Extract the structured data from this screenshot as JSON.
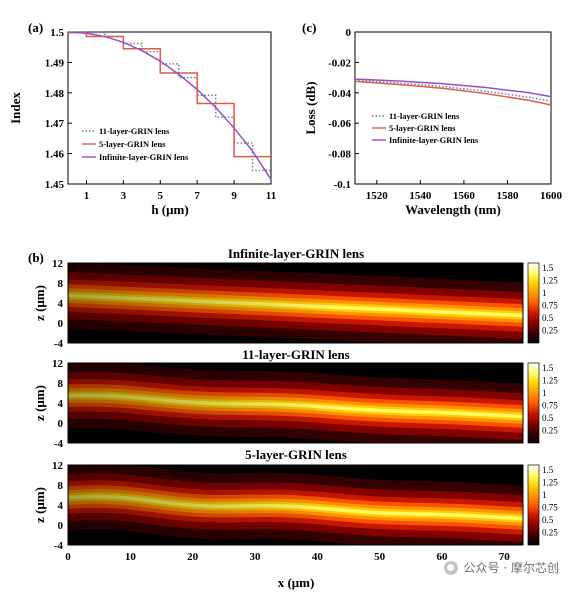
{
  "panel_labels": {
    "a": "(a)",
    "b": "(b)",
    "c": "(c)"
  },
  "watermark": {
    "text": "公众号 · 摩尔芯创",
    "icon": "wechat-icon"
  },
  "colors": {
    "eleven": "#5b8a93",
    "five": "#e25b45",
    "infinite": "#9b4dca",
    "heat": [
      "#000000",
      "#3a0000",
      "#8a0000",
      "#cf1800",
      "#ff5a00",
      "#ff9a00",
      "#ffd400",
      "#ffff70",
      "#ffffff"
    ]
  },
  "chart_data": [
    {
      "id": "a",
      "type": "line",
      "xlabel": "h (μm)",
      "ylabel": "Index",
      "xlim": [
        0,
        11
      ],
      "ylim": [
        1.45,
        1.5
      ],
      "xticks": [
        1,
        3,
        5,
        7,
        9,
        11
      ],
      "yticks": [
        1.45,
        1.46,
        1.47,
        1.48,
        1.49,
        1.5
      ],
      "legend_position": "bottom-left",
      "series": [
        {
          "name": "11-layer-GRIN lens",
          "style": "dotted",
          "step": true,
          "x": [
            0,
            1,
            2,
            3,
            4,
            5,
            6,
            7,
            8,
            9,
            10,
            11
          ],
          "y": [
            1.5,
            1.4998,
            1.4985,
            1.4962,
            1.4935,
            1.4895,
            1.485,
            1.4792,
            1.472,
            1.4635,
            1.4545,
            1.4545
          ]
        },
        {
          "name": "5-layer-GRIN lens",
          "style": "solid",
          "step": true,
          "x": [
            0,
            1,
            3,
            5,
            7,
            9,
            11
          ],
          "y": [
            1.4998,
            1.4985,
            1.4945,
            1.4865,
            1.4765,
            1.459,
            1.459
          ]
        },
        {
          "name": "Infinite-layer-GRIN lens",
          "style": "solid",
          "step": false,
          "x": [
            0,
            1,
            2,
            3,
            4,
            5,
            6,
            7,
            8,
            9,
            10,
            11
          ],
          "y": [
            1.5,
            1.4996,
            1.4985,
            1.4966,
            1.4939,
            1.4904,
            1.4861,
            1.4811,
            1.4752,
            1.4684,
            1.4608,
            1.4515
          ]
        }
      ]
    },
    {
      "id": "c",
      "type": "line",
      "xlabel": "Wavelength (nm)",
      "ylabel": "Loss (dB)",
      "xlim": [
        1510,
        1600
      ],
      "ylim": [
        -0.1,
        0
      ],
      "xticks": [
        1520,
        1540,
        1560,
        1580,
        1600
      ],
      "yticks": [
        0,
        -0.02,
        -0.04,
        -0.06,
        -0.08,
        -0.1
      ],
      "legend_position": "middle",
      "series": [
        {
          "name": "11-layer-GRIN lens",
          "style": "dotted",
          "x": [
            1510,
            1530,
            1550,
            1570,
            1590,
            1600
          ],
          "y": [
            -0.0315,
            -0.0335,
            -0.0358,
            -0.039,
            -0.043,
            -0.0455
          ]
        },
        {
          "name": "5-layer-GRIN lens",
          "style": "solid",
          "x": [
            1510,
            1530,
            1550,
            1570,
            1590,
            1600
          ],
          "y": [
            -0.0325,
            -0.0345,
            -0.037,
            -0.0405,
            -0.045,
            -0.048
          ]
        },
        {
          "name": "Infinite-layer-GRIN lens",
          "style": "solid",
          "x": [
            1510,
            1530,
            1550,
            1570,
            1590,
            1600
          ],
          "y": [
            -0.031,
            -0.0322,
            -0.034,
            -0.0365,
            -0.04,
            -0.0425
          ]
        }
      ]
    },
    {
      "id": "b",
      "type": "heatmap",
      "xlabel": "x (μm)",
      "ylabel": "z (μm)",
      "xlim": [
        0,
        73
      ],
      "ylim": [
        -4,
        12
      ],
      "xticks": [
        0,
        10,
        20,
        30,
        40,
        50,
        60,
        70
      ],
      "yticks": [
        12,
        8,
        4,
        0,
        -4
      ],
      "colorbar": {
        "range": [
          0,
          1.6
        ],
        "ticks": [
          1.5,
          1.25,
          1,
          0.75,
          0.5,
          0.25
        ]
      },
      "panels": [
        {
          "title": "Infinite-layer-GRIN lens",
          "beam_center_start": 5.5,
          "beam_center_end": 1.5,
          "ripple": 0.0
        },
        {
          "title": "11-layer-GRIN lens",
          "beam_center_start": 5.5,
          "beam_center_end": 1.3,
          "ripple": 0.35
        },
        {
          "title": "5-layer-GRIN lens",
          "beam_center_start": 5.5,
          "beam_center_end": 1.3,
          "ripple": 0.6
        }
      ]
    }
  ]
}
